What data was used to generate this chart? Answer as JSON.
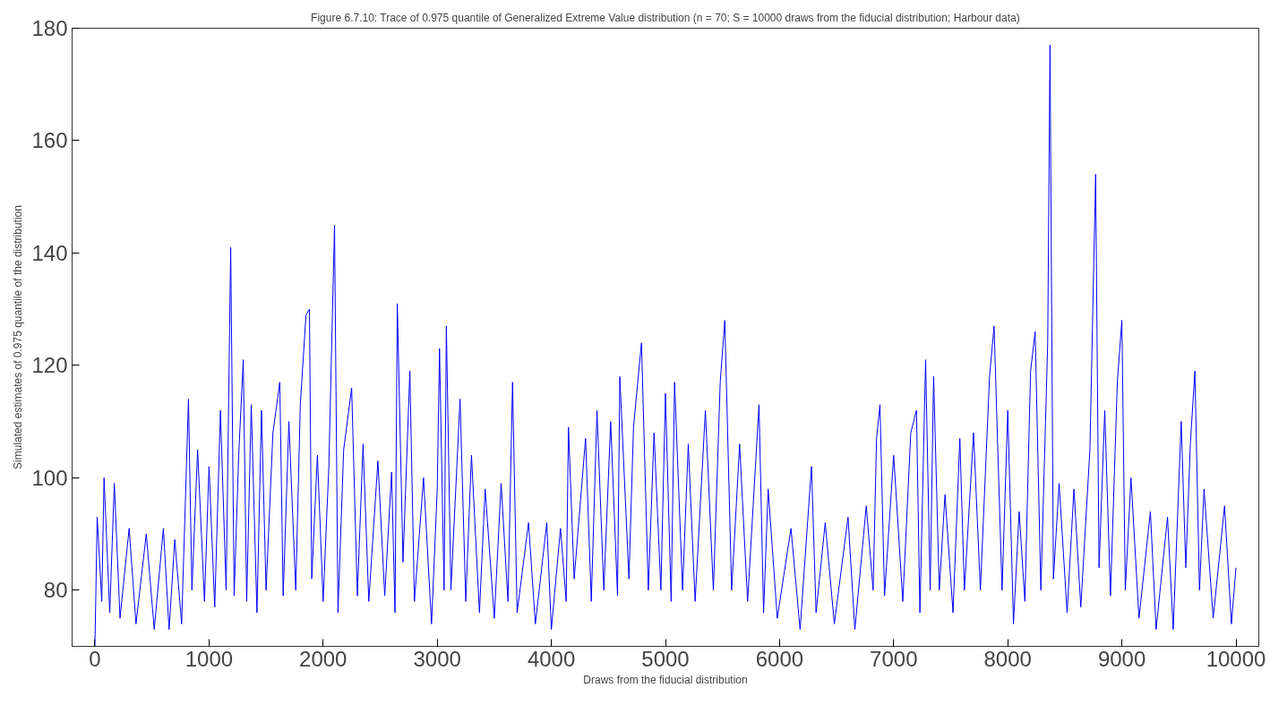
{
  "chart_data": {
    "type": "line",
    "title": "Figure 6.7.10: Trace of 0.975 quantile of Generalized Extreme Value distribution (n = 70; S = 10000 draws from the fiducial distribution; Harbour data)",
    "xlabel": "Draws from the fiducial distribution",
    "ylabel": "Simulated estimates of 0.975 quantile of the distribution",
    "xlim": [
      -200,
      10200
    ],
    "ylim": [
      70,
      180
    ],
    "xticks": [
      0,
      1000,
      2000,
      3000,
      4000,
      5000,
      6000,
      7000,
      8000,
      9000,
      10000
    ],
    "yticks": [
      80,
      100,
      120,
      140,
      160,
      180
    ],
    "grid": false,
    "marker": "none",
    "line_style": "solid",
    "series": [
      {
        "color": "#0000ff",
        "x": [
          0,
          20,
          60,
          80,
          130,
          170,
          220,
          300,
          360,
          450,
          520,
          600,
          650,
          700,
          760,
          820,
          850,
          900,
          960,
          1000,
          1050,
          1100,
          1150,
          1190,
          1220,
          1260,
          1300,
          1330,
          1370,
          1420,
          1460,
          1500,
          1560,
          1620,
          1650,
          1700,
          1760,
          1800,
          1850,
          1880,
          1900,
          1950,
          2000,
          2050,
          2100,
          2130,
          2180,
          2250,
          2300,
          2350,
          2400,
          2480,
          2540,
          2600,
          2630,
          2650,
          2700,
          2760,
          2800,
          2880,
          2950,
          3000,
          3020,
          3060,
          3080,
          3120,
          3200,
          3250,
          3300,
          3370,
          3420,
          3500,
          3560,
          3620,
          3660,
          3700,
          3800,
          3860,
          3960,
          4000,
          4080,
          4130,
          4150,
          4200,
          4300,
          4350,
          4400,
          4460,
          4520,
          4580,
          4600,
          4680,
          4720,
          4790,
          4850,
          4900,
          4960,
          5000,
          5050,
          5080,
          5150,
          5200,
          5260,
          5350,
          5420,
          5480,
          5520,
          5580,
          5650,
          5720,
          5820,
          5860,
          5900,
          5980,
          6100,
          6180,
          6280,
          6320,
          6400,
          6480,
          6600,
          6660,
          6760,
          6820,
          6850,
          6880,
          6920,
          7000,
          7080,
          7150,
          7200,
          7230,
          7280,
          7320,
          7350,
          7400,
          7450,
          7520,
          7580,
          7620,
          7700,
          7760,
          7840,
          7880,
          7950,
          8000,
          8050,
          8100,
          8150,
          8200,
          8240,
          8290,
          8350,
          8370,
          8400,
          8450,
          8520,
          8580,
          8640,
          8720,
          8770,
          8800,
          8850,
          8900,
          8960,
          9000,
          9030,
          9080,
          9150,
          9250,
          9300,
          9400,
          9450,
          9520,
          9560,
          9600,
          9640,
          9680,
          9720,
          9800,
          9900,
          9960,
          10000
        ],
        "values": [
          70,
          93,
          78,
          100,
          76,
          99,
          75,
          91,
          74,
          90,
          73,
          91,
          73,
          89,
          74,
          114,
          80,
          105,
          78,
          102,
          77,
          112,
          80,
          141,
          79,
          104,
          121,
          78,
          113,
          76,
          112,
          80,
          108,
          117,
          79,
          110,
          80,
          113,
          129,
          130,
          82,
          104,
          78,
          102,
          145,
          76,
          105,
          116,
          79,
          106,
          78,
          103,
          79,
          101,
          76,
          131,
          85,
          119,
          78,
          100,
          74,
          98,
          123,
          80,
          127,
          80,
          114,
          78,
          104,
          76,
          98,
          75,
          99,
          78,
          117,
          76,
          92,
          74,
          92,
          73,
          91,
          78,
          109,
          82,
          107,
          78,
          112,
          80,
          110,
          79,
          118,
          82,
          109,
          124,
          80,
          108,
          80,
          115,
          78,
          117,
          80,
          106,
          78,
          112,
          80,
          117,
          128,
          80,
          106,
          78,
          113,
          76,
          98,
          75,
          91,
          73,
          102,
          76,
          92,
          74,
          93,
          73,
          95,
          80,
          107,
          113,
          79,
          104,
          78,
          108,
          112,
          76,
          121,
          80,
          118,
          80,
          97,
          76,
          107,
          80,
          108,
          80,
          118,
          127,
          80,
          112,
          74,
          94,
          78,
          119,
          126,
          80,
          124,
          177,
          82,
          99,
          76,
          98,
          77,
          105,
          154,
          84,
          112,
          79,
          117,
          128,
          80,
          100,
          75,
          94,
          73,
          93,
          73,
          110,
          84,
          106,
          119,
          80,
          98,
          75,
          95,
          74,
          84
        ]
      }
    ]
  }
}
